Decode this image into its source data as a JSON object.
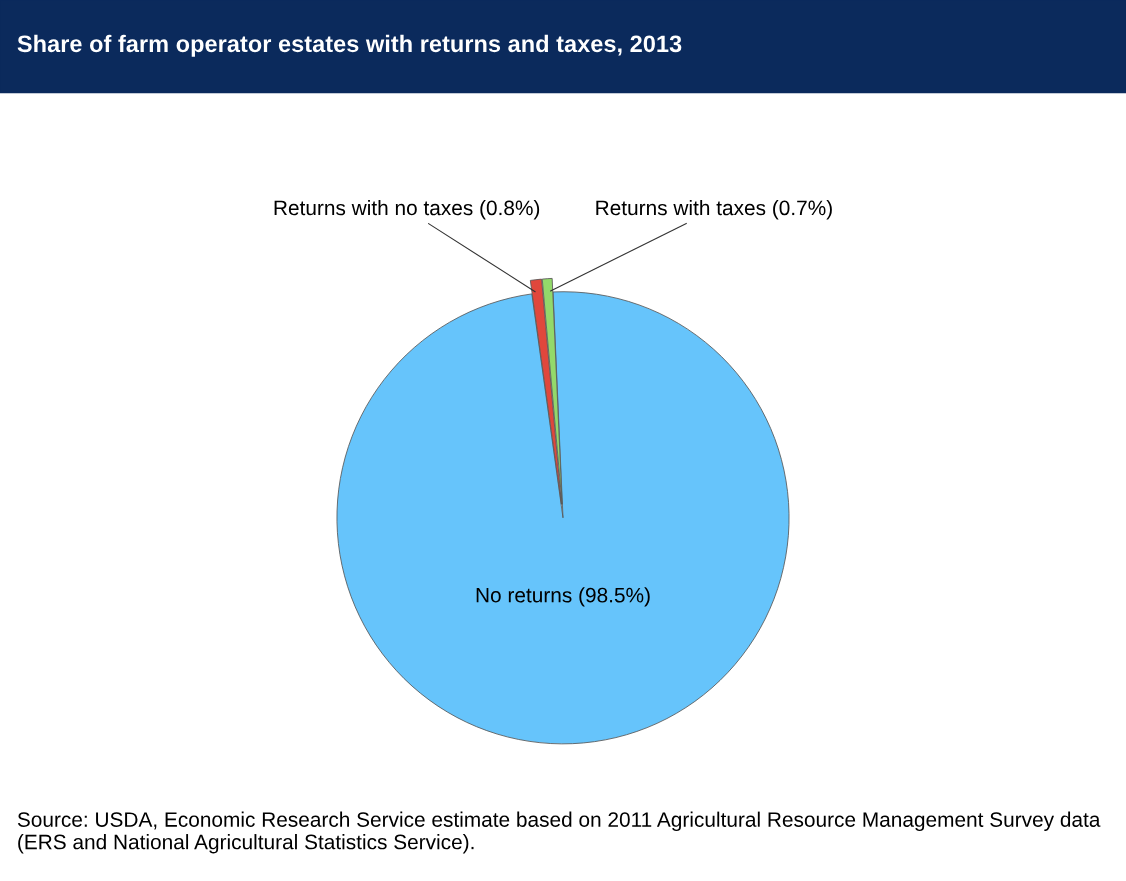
{
  "chart_data": {
    "type": "pie",
    "title": "Share of farm operator estates with returns and taxes, 2013",
    "categories": [
      "No returns (98.5%)",
      "Returns with no taxes (0.8%)",
      "Returns with taxes (0.7%)"
    ],
    "values": [
      98.5,
      0.8,
      0.7
    ],
    "colors": [
      "#66c4fb",
      "#e0473c",
      "#93d96a"
    ],
    "annotations": [
      "Source: USDA, Economic Research Service estimate based on 2011 Agricultural Resource Management Survey data (ERS and National Agricultural Statistics Service)."
    ]
  }
}
